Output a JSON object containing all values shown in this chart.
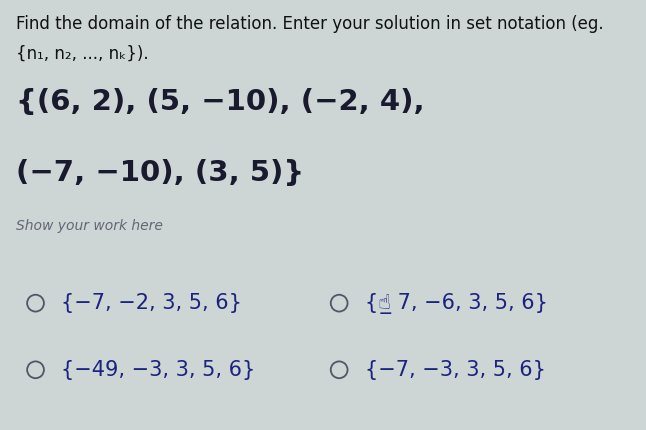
{
  "background_color": "#cdd5d5",
  "title_line1": "Find the domain of the relation. Enter your solution in set notation (eg.",
  "title_line2": "{n₁, n₂, ..., nₖ}).",
  "question_line1": "{(6, 2), (5, −10), (−2, 4),",
  "question_line2": "(−7, −10), (3, 5)}",
  "show_work": "Show your work here",
  "option_a": "{−7, −2, 3, 5, 6}",
  "option_b_prefix": "{",
  "option_b_middle": "👆",
  "option_b_suffix": "7, −6, 3, 5, 6}",
  "option_c": "{−49, −3, 3, 5, 6}",
  "option_d": "{−7, −3, 3, 5, 6}",
  "circle_color": "#555566",
  "title_fontsize": 12,
  "title_line2_fontsize": 12,
  "question_fontsize": 21,
  "option_fontsize": 15,
  "show_work_fontsize": 10,
  "text_color": "#1a1a2e",
  "option_color": "#1a237e",
  "show_work_color": "#666677",
  "title_color": "#111111"
}
